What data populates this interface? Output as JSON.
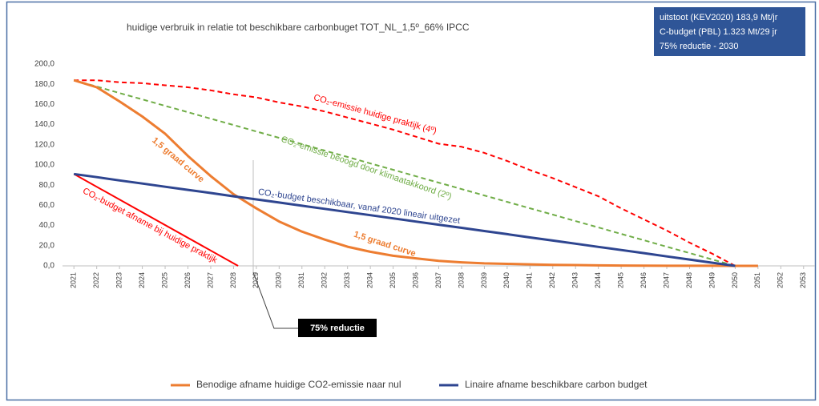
{
  "chart_data": {
    "type": "line",
    "title": "huidige verbruik in relatie tot beschikbare carbonbuget TOT_NL_1,5º_66% IPCC",
    "info_box": [
      "uitstoot (KEV2020) 183,9 Mt/jr",
      "C-budget (PBL) 1.323 Mt/29 jr",
      "75% reductie - 2030"
    ],
    "xlim": [
      2020.5,
      2053.5
    ],
    "xticks": [
      2021,
      2022,
      2023,
      2024,
      2025,
      2026,
      2027,
      2028,
      2029,
      2030,
      2031,
      2032,
      2033,
      2034,
      2035,
      2036,
      2037,
      2038,
      2039,
      2040,
      2041,
      2042,
      2043,
      2044,
      2045,
      2046,
      2047,
      2048,
      2049,
      2050,
      2051,
      2052,
      2053
    ],
    "ylim": [
      0,
      200
    ],
    "yticks": [
      {
        "value": 0,
        "label": "0,0"
      },
      {
        "value": 20,
        "label": "20,0"
      },
      {
        "value": 40,
        "label": "40,0"
      },
      {
        "value": 60,
        "label": "60,0"
      },
      {
        "value": 80,
        "label": "80,0"
      },
      {
        "value": 100,
        "label": "100,0"
      },
      {
        "value": 120,
        "label": "120,0"
      },
      {
        "value": 140,
        "label": "140,0"
      },
      {
        "value": 160,
        "label": "160,0"
      },
      {
        "value": 180,
        "label": "180,0"
      },
      {
        "value": 200,
        "label": "200,0"
      }
    ],
    "series": [
      {
        "name": "CO₂-emissie huidige praktijk (4º)",
        "color": "#ff0000",
        "dashed": true,
        "x": [
          2021,
          2022,
          2023,
          2024,
          2025,
          2026,
          2027,
          2028,
          2029,
          2030,
          2031,
          2032,
          2033,
          2034,
          2035,
          2036,
          2037,
          2038,
          2039,
          2040,
          2041,
          2042,
          2043,
          2044,
          2045,
          2046,
          2047,
          2048,
          2049,
          2050
        ],
        "values": [
          184,
          184,
          182,
          181,
          179,
          177,
          174,
          170,
          167,
          162,
          158,
          153,
          147,
          141,
          135,
          128,
          121,
          118,
          112,
          104,
          95,
          87,
          78,
          69,
          57,
          46,
          35,
          23,
          12,
          0
        ]
      },
      {
        "name": "CO₂-emissie beoogd door klimaatakkoord (2º)",
        "color": "#70ad47",
        "dashed": true,
        "x": [
          2021,
          2022,
          2023,
          2024,
          2025,
          2026,
          2027,
          2028,
          2029,
          2030,
          2031,
          2032,
          2033,
          2034,
          2035,
          2036,
          2037,
          2038,
          2039,
          2040,
          2041,
          2042,
          2043,
          2044,
          2045,
          2046,
          2047,
          2048,
          2049,
          2050
        ],
        "values": [
          184,
          177.7,
          171.3,
          165,
          158.6,
          152.3,
          145.9,
          139.6,
          133.2,
          126.9,
          120.6,
          114.2,
          107.9,
          101.5,
          95.2,
          88.8,
          82.5,
          76.1,
          69.8,
          63.4,
          57.1,
          50.8,
          44.4,
          38.1,
          31.7,
          25.4,
          19,
          12.7,
          6.3,
          0
        ]
      },
      {
        "name": "CO₂-budget afname bij huidige praktijk",
        "color": "#ff0000",
        "dashed": false,
        "x": [
          2021,
          2028.2
        ],
        "values": [
          91,
          0
        ]
      },
      {
        "name": "Benodige afname huidige CO2-emissie naar nul",
        "color": "#ed7d31",
        "dashed": false,
        "legend": true,
        "x": [
          2021,
          2022,
          2023,
          2024,
          2025,
          2026,
          2027,
          2028,
          2029,
          2030,
          2031,
          2032,
          2033,
          2034,
          2035,
          2036,
          2037,
          2038,
          2039,
          2040,
          2041,
          2042,
          2043,
          2044,
          2045,
          2046,
          2047,
          2048,
          2049,
          2050,
          2051
        ],
        "values": [
          184,
          177,
          163,
          148,
          131,
          109,
          89,
          71,
          57,
          44,
          34,
          26,
          19,
          14,
          10,
          7.5,
          5,
          3.5,
          2.5,
          2,
          1.5,
          1,
          0.8,
          0.5,
          0.3,
          0.2,
          0.1,
          0.1,
          0.05,
          0,
          0
        ]
      },
      {
        "name": "Linaire afname beschikbare carbon budget",
        "color": "#2e4590",
        "dashed": false,
        "legend": true,
        "x": [
          2021,
          2022,
          2023,
          2024,
          2025,
          2026,
          2027,
          2028,
          2029,
          2030,
          2031,
          2032,
          2033,
          2034,
          2035,
          2036,
          2037,
          2038,
          2039,
          2040,
          2041,
          2042,
          2043,
          2044,
          2045,
          2046,
          2047,
          2048,
          2049,
          2050
        ],
        "values": [
          91,
          87.9,
          84.7,
          81.6,
          78.4,
          75.3,
          72.2,
          69,
          65.9,
          62.8,
          59.6,
          56.5,
          53.3,
          50.2,
          47.1,
          43.9,
          40.8,
          37.7,
          34.5,
          31.4,
          28.2,
          25.1,
          22,
          18.8,
          15.7,
          12.6,
          9.4,
          6.3,
          3.1,
          0
        ]
      }
    ],
    "annotations": [
      "1,5 graad curve",
      "1,5 graad curve",
      "CO₂-budget beschikbaar, vanaf 2020 lineair uitgezet",
      "75% reductie"
    ]
  }
}
